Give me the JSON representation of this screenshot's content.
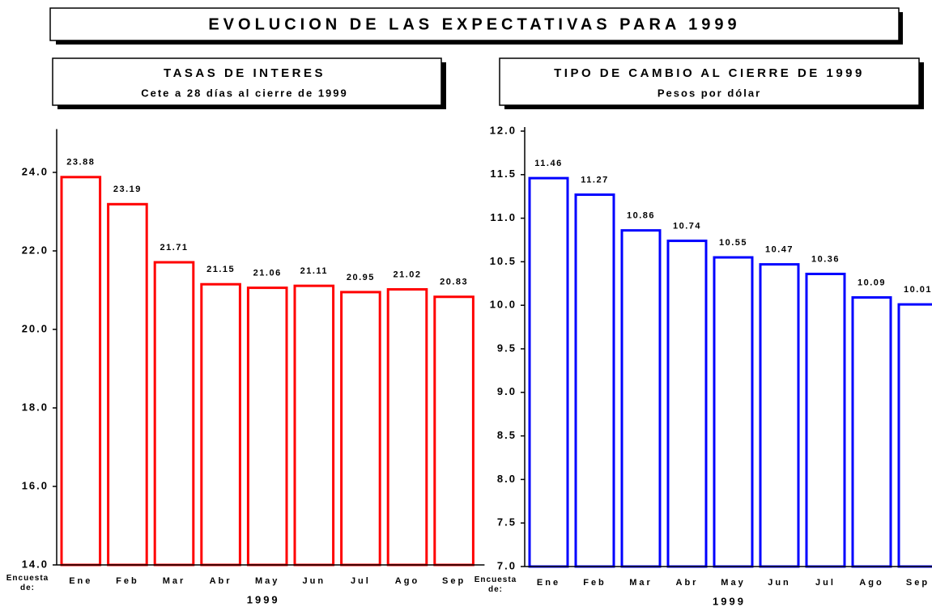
{
  "title": "EVOLUCION DE LAS EXPECTATIVAS PARA 1999",
  "chart_data": [
    {
      "type": "bar",
      "title": "TASAS DE INTERES",
      "subtitle": "Cete a 28 días al cierre de 1999",
      "x_prefix": "Encuesta de:",
      "xlabel": "1999",
      "categories": [
        "Ene",
        "Feb",
        "Mar",
        "Abr",
        "May",
        "Jun",
        "Jul",
        "Ago",
        "Sep"
      ],
      "values": [
        23.88,
        23.19,
        21.71,
        21.15,
        21.06,
        21.11,
        20.95,
        21.02,
        20.83
      ],
      "color": "#ff0000",
      "ylim": [
        14,
        25
      ],
      "yticks": [
        {
          "value": 14,
          "label": "14.0"
        },
        {
          "value": 16,
          "label": "16.0"
        },
        {
          "value": 18,
          "label": "18.0"
        },
        {
          "value": 20,
          "label": "20.0"
        },
        {
          "value": 22,
          "label": "22.0"
        },
        {
          "value": 24,
          "label": "24.0"
        }
      ]
    },
    {
      "type": "bar",
      "title": "TIPO DE CAMBIO AL CIERRE DE 1999",
      "subtitle": "Pesos por dólar",
      "x_prefix": "Encuesta de:",
      "xlabel": "1999",
      "categories": [
        "Ene",
        "Feb",
        "Mar",
        "Abr",
        "May",
        "Jun",
        "Jul",
        "Ago",
        "Sep"
      ],
      "values": [
        11.46,
        11.27,
        10.86,
        10.74,
        10.55,
        10.47,
        10.36,
        10.09,
        10.01
      ],
      "color": "#0000ff",
      "ylim": [
        7,
        12
      ],
      "yticks": [
        {
          "value": 7,
          "label": "7.0"
        },
        7.5,
        {
          "value": 8,
          "label": "8.0"
        },
        8.5,
        {
          "value": 9,
          "label": "9.0"
        },
        9.5,
        {
          "value": 10,
          "label": "10.0"
        },
        10.5,
        {
          "value": 11,
          "label": "11.0"
        },
        11.5,
        {
          "value": 12,
          "label": "12.0"
        }
      ]
    }
  ]
}
